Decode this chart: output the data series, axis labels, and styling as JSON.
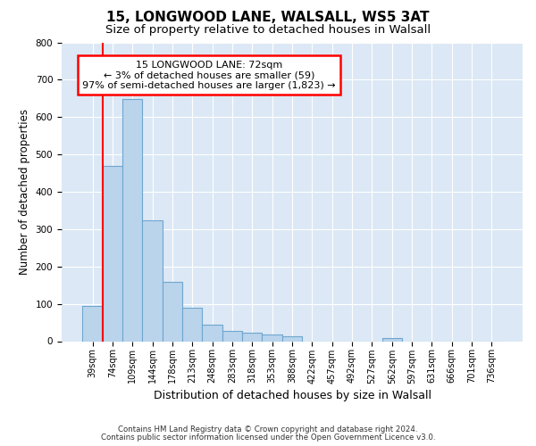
{
  "title1": "15, LONGWOOD LANE, WALSALL, WS5 3AT",
  "title2": "Size of property relative to detached houses in Walsall",
  "xlabel": "Distribution of detached houses by size in Walsall",
  "ylabel": "Number of detached properties",
  "categories": [
    "39sqm",
    "74sqm",
    "109sqm",
    "144sqm",
    "178sqm",
    "213sqm",
    "248sqm",
    "283sqm",
    "318sqm",
    "353sqm",
    "388sqm",
    "422sqm",
    "457sqm",
    "492sqm",
    "527sqm",
    "562sqm",
    "597sqm",
    "631sqm",
    "666sqm",
    "701sqm",
    "736sqm"
  ],
  "values": [
    95,
    470,
    648,
    323,
    160,
    90,
    43,
    28,
    22,
    17,
    12,
    0,
    0,
    0,
    0,
    8,
    0,
    0,
    0,
    0,
    0
  ],
  "bar_color": "#bad4ec",
  "bar_edge_color": "#6ea6d0",
  "annotation_line1": "15 LONGWOOD LANE: 72sqm",
  "annotation_line2": "← 3% of detached houses are smaller (59)",
  "annotation_line3": "97% of semi-detached houses are larger (1,823) →",
  "annotation_box_color": "white",
  "annotation_box_edge_color": "red",
  "vline_color": "red",
  "vline_x_bar_index": 1,
  "ylim": [
    0,
    800
  ],
  "yticks": [
    0,
    100,
    200,
    300,
    400,
    500,
    600,
    700,
    800
  ],
  "background_color": "#dce8f5",
  "grid_color": "white",
  "footer1": "Contains HM Land Registry data © Crown copyright and database right 2024.",
  "footer2": "Contains public sector information licensed under the Open Government Licence v3.0.",
  "title1_fontsize": 11,
  "title2_fontsize": 9.5,
  "xlabel_fontsize": 9,
  "ylabel_fontsize": 8.5,
  "tick_fontsize": 7.5,
  "xtick_fontsize": 7
}
